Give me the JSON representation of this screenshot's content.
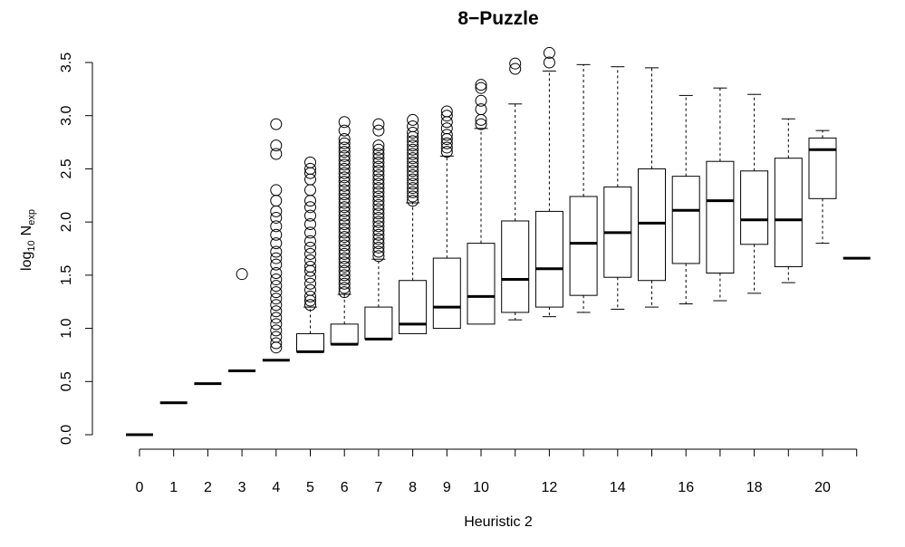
{
  "chart_data": {
    "type": "box",
    "title": "8−Puzzle",
    "xlabel": "Heuristic 2",
    "ylabel": {
      "base": "log",
      "base_sub": "10",
      "main": "N",
      "main_sub": "exp"
    },
    "x_tick_labels": [
      "0",
      "1",
      "2",
      "3",
      "4",
      "5",
      "6",
      "7",
      "8",
      "9",
      "10",
      "12",
      "14",
      "16",
      "18",
      "20"
    ],
    "y_tick_labels": [
      "0.0",
      "0.5",
      "1.0",
      "1.5",
      "2.0",
      "2.5",
      "3.0",
      "3.5"
    ],
    "ylim": [
      -0.12,
      3.62
    ],
    "grid": false,
    "legend": "none",
    "boxes": [
      {
        "x": 0,
        "lower_whisker": 0,
        "q1": 0,
        "median": 0,
        "q3": 0,
        "upper_whisker": 0,
        "outliers": []
      },
      {
        "x": 1,
        "lower_whisker": 0.3,
        "q1": 0.3,
        "median": 0.3,
        "q3": 0.3,
        "upper_whisker": 0.3,
        "outliers": []
      },
      {
        "x": 2,
        "lower_whisker": 0.48,
        "q1": 0.48,
        "median": 0.48,
        "q3": 0.48,
        "upper_whisker": 0.48,
        "outliers": []
      },
      {
        "x": 3,
        "lower_whisker": 0.6,
        "q1": 0.6,
        "median": 0.6,
        "q3": 0.6,
        "upper_whisker": 0.6,
        "outliers": [
          1.51
        ]
      },
      {
        "x": 4,
        "lower_whisker": 0.7,
        "q1": 0.7,
        "median": 0.7,
        "q3": 0.7,
        "upper_whisker": 0.7,
        "outliers": [
          0.82,
          0.86,
          0.92,
          0.98,
          1.04,
          1.1,
          1.16,
          1.22,
          1.28,
          1.34,
          1.4,
          1.46,
          1.52,
          1.6,
          1.66,
          1.72,
          1.8,
          1.88,
          1.96,
          2.04,
          2.1,
          2.2,
          2.3,
          2.64,
          2.72,
          2.92
        ]
      },
      {
        "x": 5,
        "lower_whisker": 0.78,
        "q1": 0.78,
        "median": 0.78,
        "q3": 0.95,
        "upper_whisker": 1.2,
        "outliers": [
          1.22,
          1.26,
          1.3,
          1.36,
          1.42,
          1.48,
          1.54,
          1.58,
          1.64,
          1.7,
          1.76,
          1.82,
          1.9,
          1.98,
          2.06,
          2.14,
          2.2,
          2.3,
          2.4,
          2.46,
          2.5,
          2.56
        ]
      },
      {
        "x": 6,
        "lower_whisker": 0.85,
        "q1": 0.85,
        "median": 0.85,
        "q3": 1.04,
        "upper_whisker": 1.32,
        "outliers": [
          1.34,
          1.38,
          1.42,
          1.46,
          1.5,
          1.54,
          1.58,
          1.62,
          1.66,
          1.7,
          1.74,
          1.78,
          1.82,
          1.86,
          1.9,
          1.94,
          1.98,
          2.02,
          2.06,
          2.1,
          2.14,
          2.18,
          2.22,
          2.26,
          2.3,
          2.34,
          2.38,
          2.42,
          2.46,
          2.5,
          2.54,
          2.58,
          2.62,
          2.66,
          2.7,
          2.74,
          2.78,
          2.86,
          2.94
        ]
      },
      {
        "x": 7,
        "lower_whisker": 0.9,
        "q1": 0.9,
        "median": 0.9,
        "q3": 1.2,
        "upper_whisker": 1.65,
        "outliers": [
          1.68,
          1.72,
          1.76,
          1.8,
          1.84,
          1.88,
          1.92,
          1.96,
          2.0,
          2.04,
          2.08,
          2.12,
          2.16,
          2.2,
          2.24,
          2.28,
          2.32,
          2.36,
          2.4,
          2.44,
          2.48,
          2.52,
          2.56,
          2.6,
          2.64,
          2.68,
          2.72,
          2.86,
          2.92
        ]
      },
      {
        "x": 8,
        "lower_whisker": 0.95,
        "q1": 0.95,
        "median": 1.04,
        "q3": 1.45,
        "upper_whisker": 2.18,
        "outliers": [
          2.2,
          2.24,
          2.28,
          2.32,
          2.36,
          2.4,
          2.44,
          2.48,
          2.52,
          2.56,
          2.6,
          2.64,
          2.68,
          2.72,
          2.76,
          2.8,
          2.84,
          2.9,
          2.96
        ]
      },
      {
        "x": 9,
        "lower_whisker": 1.0,
        "q1": 1.0,
        "median": 1.2,
        "q3": 1.66,
        "upper_whisker": 2.62,
        "outliers": [
          2.66,
          2.7,
          2.74,
          2.78,
          2.82,
          2.88,
          2.94,
          3.0,
          3.04
        ]
      },
      {
        "x": 10,
        "lower_whisker": 1.04,
        "q1": 1.04,
        "median": 1.3,
        "q3": 1.8,
        "upper_whisker": 2.88,
        "outliers": [
          2.92,
          2.96,
          3.06,
          3.14,
          3.26,
          3.29
        ]
      },
      {
        "x": 11,
        "lower_whisker": 1.08,
        "q1": 1.15,
        "median": 1.46,
        "q3": 2.01,
        "upper_whisker": 3.11,
        "outliers": [
          3.44,
          3.49
        ]
      },
      {
        "x": 12,
        "lower_whisker": 1.11,
        "q1": 1.2,
        "median": 1.56,
        "q3": 2.1,
        "upper_whisker": 3.42,
        "outliers": [
          3.5,
          3.59
        ]
      },
      {
        "x": 13,
        "lower_whisker": 1.15,
        "q1": 1.31,
        "median": 1.8,
        "q3": 2.24,
        "upper_whisker": 3.48,
        "outliers": []
      },
      {
        "x": 14,
        "lower_whisker": 1.18,
        "q1": 1.48,
        "median": 1.9,
        "q3": 2.33,
        "upper_whisker": 3.46,
        "outliers": []
      },
      {
        "x": 15,
        "lower_whisker": 1.2,
        "q1": 1.45,
        "median": 1.99,
        "q3": 2.5,
        "upper_whisker": 3.45,
        "outliers": []
      },
      {
        "x": 16,
        "lower_whisker": 1.23,
        "q1": 1.61,
        "median": 2.11,
        "q3": 2.43,
        "upper_whisker": 3.19,
        "outliers": []
      },
      {
        "x": 17,
        "lower_whisker": 1.26,
        "q1": 1.52,
        "median": 2.2,
        "q3": 2.57,
        "upper_whisker": 3.26,
        "outliers": []
      },
      {
        "x": 18,
        "lower_whisker": 1.33,
        "q1": 1.79,
        "median": 2.02,
        "q3": 2.48,
        "upper_whisker": 3.2,
        "outliers": []
      },
      {
        "x": 19,
        "lower_whisker": 1.43,
        "q1": 1.58,
        "median": 2.02,
        "q3": 2.6,
        "upper_whisker": 2.97,
        "outliers": []
      },
      {
        "x": 20,
        "lower_whisker": 1.8,
        "q1": 2.22,
        "median": 2.68,
        "q3": 2.79,
        "upper_whisker": 2.86,
        "outliers": []
      },
      {
        "x": 21,
        "lower_whisker": 1.66,
        "q1": 1.66,
        "median": 1.66,
        "q3": 1.66,
        "upper_whisker": 1.66,
        "outliers": []
      }
    ]
  }
}
